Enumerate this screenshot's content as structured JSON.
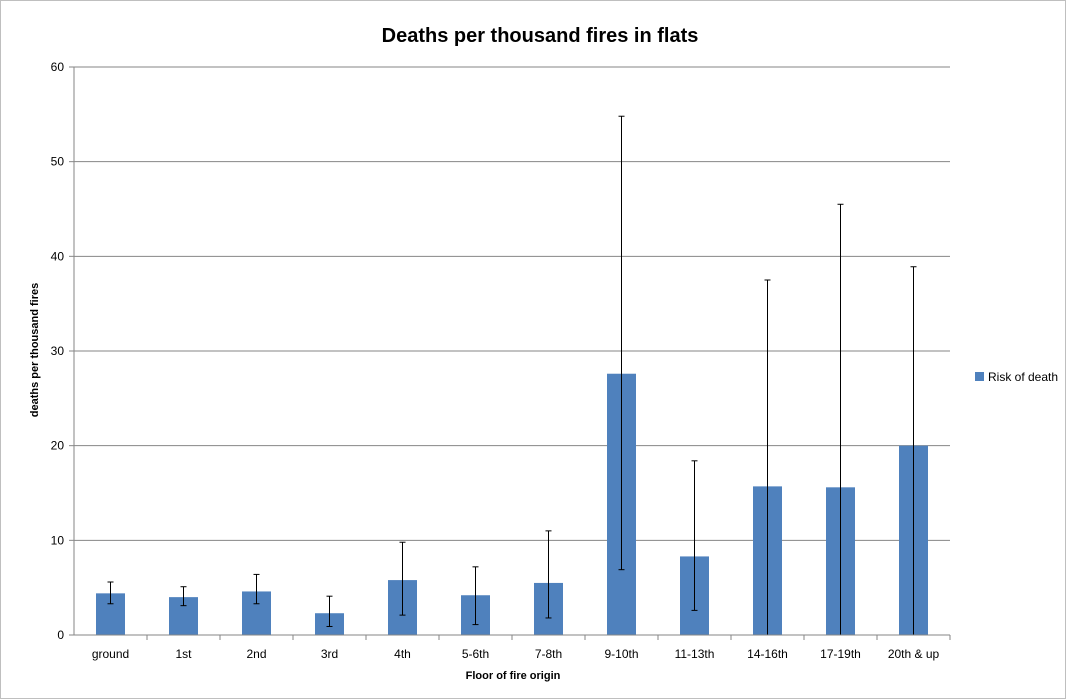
{
  "chart_data": {
    "type": "bar",
    "title": "Deaths per thousand fires in flats",
    "xlabel": "Floor of fire origin",
    "ylabel": "deaths per thousand fires",
    "categories": [
      "ground",
      "1st",
      "2nd",
      "3rd",
      "4th",
      "5-6th",
      "7-8th",
      "9-10th",
      "11-13th",
      "14-16th",
      "17-19th",
      "20th & up"
    ],
    "series": [
      {
        "name": "Risk of death",
        "color": "#4F81BD",
        "values": [
          4.4,
          4.0,
          4.6,
          2.3,
          5.8,
          4.2,
          5.5,
          27.6,
          8.3,
          15.7,
          15.6,
          20.0
        ],
        "error_low": [
          3.3,
          3.1,
          3.3,
          0.9,
          2.1,
          1.1,
          1.8,
          6.9,
          2.6,
          0,
          0,
          0
        ],
        "error_high": [
          5.6,
          5.1,
          6.4,
          4.1,
          9.8,
          7.2,
          11.0,
          54.8,
          18.4,
          37.5,
          45.5,
          38.9
        ]
      }
    ],
    "ylim": [
      0,
      60
    ],
    "yticks": [
      "0",
      "10",
      "20",
      "30",
      "40",
      "50",
      "60"
    ],
    "grid": true,
    "legend_position": "right",
    "bar_color": "#4F81BD",
    "gridline_color": "#868686",
    "errorbar_color": "#000000"
  }
}
